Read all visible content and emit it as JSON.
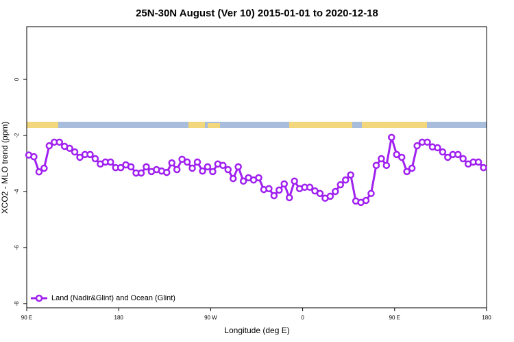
{
  "chart_data": {
    "type": "line",
    "title": "25N-30N August (Ver 10)   2015-01-01 to 2020-12-18",
    "x_label": "Longitude (deg E)",
    "y_label": "XCO2 - MLO trend (ppm)",
    "xlim": [
      90,
      540
    ],
    "xticks": [
      {
        "value": 90,
        "label": "90 E"
      },
      180,
      {
        "value": 270,
        "label": "90 W"
      },
      {
        "value": 360,
        "label": "0"
      },
      {
        "value": 450,
        "label": "90 E"
      },
      {
        "value": 540,
        "label": "180"
      }
    ],
    "ylim": [
      -8.15,
      1.88
    ],
    "yticks": [
      -8,
      -6,
      -4,
      -2,
      0
    ],
    "legend": "bottom-left",
    "x": [
      92,
      97,
      102,
      107,
      112,
      117,
      122,
      127,
      132,
      137,
      142,
      147,
      152,
      157,
      162,
      167,
      172,
      177,
      182,
      187,
      192,
      197,
      202,
      207,
      212,
      217,
      222,
      227,
      232,
      237,
      242,
      247,
      252,
      257,
      262,
      267,
      272,
      277,
      282,
      287,
      292,
      297,
      302,
      307,
      312,
      317,
      322,
      327,
      332,
      337,
      342,
      347,
      352,
      357,
      362,
      367,
      372,
      377,
      382,
      387,
      392,
      397,
      402,
      407,
      412,
      417,
      422,
      427,
      432,
      437,
      442,
      447,
      452,
      457,
      462,
      467,
      472,
      477,
      482,
      487,
      492,
      497,
      502,
      507,
      512,
      517,
      522,
      527,
      532,
      537
    ],
    "series": [
      {
        "name": "Land (Nadir&Glint) and Ocean (Glint)",
        "color": "#a020f0",
        "values": [
          -2.7,
          -2.76,
          -3.3,
          -3.17,
          -2.37,
          -2.24,
          -2.24,
          -2.39,
          -2.46,
          -2.59,
          -2.78,
          -2.68,
          -2.68,
          -2.83,
          -3.02,
          -2.95,
          -2.95,
          -3.15,
          -3.15,
          -3.05,
          -3.12,
          -3.34,
          -3.34,
          -3.12,
          -3.29,
          -3.22,
          -3.27,
          -3.32,
          -2.98,
          -3.22,
          -2.85,
          -2.95,
          -3.17,
          -2.95,
          -3.27,
          -3.12,
          -3.29,
          -3.02,
          -3.07,
          -3.22,
          -3.54,
          -3.12,
          -3.63,
          -3.51,
          -3.59,
          -3.51,
          -3.93,
          -3.9,
          -4.15,
          -3.95,
          -3.73,
          -4.22,
          -3.63,
          -3.9,
          -3.85,
          -3.85,
          -3.98,
          -4.07,
          -4.24,
          -4.17,
          -4.0,
          -3.76,
          -3.59,
          -3.41,
          -4.34,
          -4.39,
          -4.32,
          -4.07,
          -3.07,
          -2.83,
          -3.07,
          -2.07,
          -2.68,
          -2.78,
          -3.29,
          -3.17,
          -2.37,
          -2.24,
          -2.24,
          -2.41,
          -2.44,
          -2.59,
          -2.78,
          -2.68,
          -2.68,
          -2.83,
          -3.02,
          -2.95,
          -2.95,
          -3.15
        ]
      }
    ]
  }
}
